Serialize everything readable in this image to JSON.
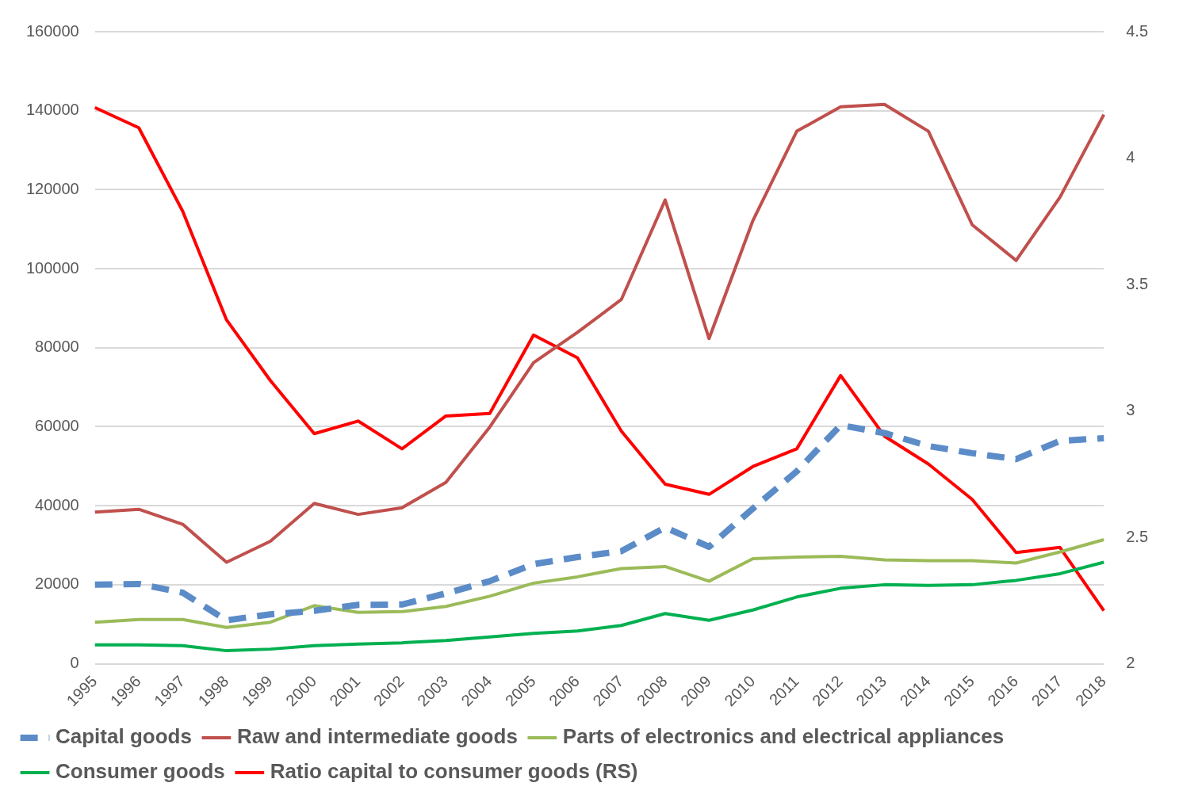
{
  "chart_data": {
    "type": "line",
    "categories": [
      "1995",
      "1996",
      "1997",
      "1998",
      "1999",
      "2000",
      "2001",
      "2002",
      "2003",
      "2004",
      "2005",
      "2006",
      "2007",
      "2008",
      "2009",
      "2010",
      "2011",
      "2012",
      "2013",
      "2014",
      "2015",
      "2016",
      "2017",
      "2018"
    ],
    "series": [
      {
        "name": "Capital goods",
        "color": "#5b8cc8",
        "line_style": "dashed",
        "values": [
          20000,
          20200,
          18000,
          11000,
          12500,
          13400,
          14900,
          15000,
          17800,
          20900,
          25200,
          27000,
          28500,
          34500,
          29600,
          39300,
          48700,
          60400,
          58400,
          55100,
          53300,
          51800,
          56400,
          57100
        ]
      },
      {
        "name": "Raw and intermediate goods",
        "color": "#c0504d",
        "values": [
          38400,
          39100,
          35300,
          25700,
          31000,
          40600,
          37800,
          39500,
          45900,
          59900,
          76200,
          83900,
          92200,
          117400,
          82300,
          112200,
          134800,
          141000,
          141600,
          134800,
          111100,
          102100,
          118100,
          139000
        ]
      },
      {
        "name": "Parts of electronics and electrical appliances",
        "color": "#9bbb59",
        "values": [
          10500,
          11200,
          11200,
          9200,
          10500,
          14700,
          13000,
          13200,
          14500,
          17100,
          20400,
          22000,
          24100,
          24600,
          20900,
          26600,
          27000,
          27200,
          26300,
          26100,
          26100,
          25500,
          28300,
          31400
        ]
      },
      {
        "name": "Consumer goods",
        "color": "#00b050",
        "values": [
          4800,
          4800,
          4600,
          3300,
          3700,
          4600,
          5000,
          5300,
          5900,
          6800,
          7700,
          8300,
          9700,
          12700,
          11000,
          13600,
          16900,
          19100,
          20000,
          19800,
          20000,
          21100,
          22800,
          25700
        ]
      },
      {
        "name": "Ratio capital to consumer goods (RS)",
        "color": "#ff0000",
        "axis": "y2",
        "values": [
          4.2,
          4.12,
          3.79,
          3.36,
          3.12,
          2.91,
          2.96,
          2.85,
          2.98,
          2.99,
          3.3,
          3.21,
          2.92,
          2.71,
          2.67,
          2.78,
          2.85,
          3.14,
          2.9,
          2.79,
          2.65,
          2.44,
          2.46,
          2.21
        ]
      }
    ],
    "ylim": [
      0,
      160000
    ],
    "yticks": [
      0,
      20000,
      40000,
      60000,
      80000,
      100000,
      120000,
      140000,
      160000
    ],
    "y2lim": [
      2,
      4.5
    ],
    "y2ticks": [
      2,
      2.5,
      3,
      3.5,
      4,
      4.5
    ],
    "grid": "y",
    "legend": "bottom"
  }
}
